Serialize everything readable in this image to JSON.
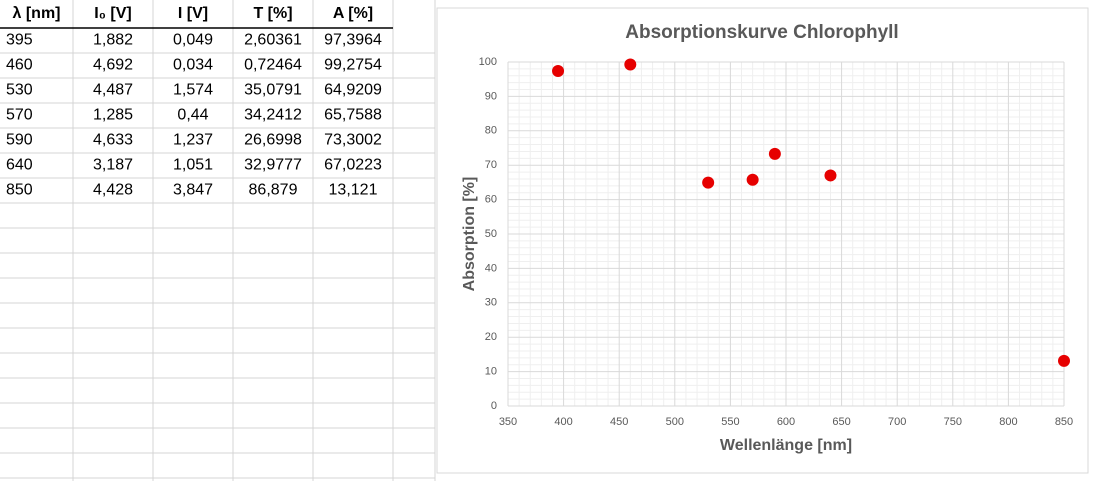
{
  "table": {
    "header": [
      "λ [nm]",
      "I₀ [V]",
      "I [V]",
      "T [%]",
      "A [%]"
    ],
    "rows": [
      [
        "395",
        "1,882",
        "0,049",
        "2,60361",
        "97,3964"
      ],
      [
        "460",
        "4,692",
        "0,034",
        "0,72464",
        "99,2754"
      ],
      [
        "530",
        "4,487",
        "1,574",
        "35,0791",
        "64,9209"
      ],
      [
        "570",
        "1,285",
        "0,44",
        "34,2412",
        "65,7588"
      ],
      [
        "590",
        "4,633",
        "1,237",
        "26,6998",
        "73,3002"
      ],
      [
        "640",
        "3,187",
        "1,051",
        "32,9777",
        "67,0223"
      ],
      [
        "850",
        "4,428",
        "3,847",
        "86,879",
        "13,121"
      ]
    ]
  },
  "chart_data": {
    "type": "scatter",
    "title": "Absorptionskurve Chlorophyll",
    "x_label": "Wellenlänge [nm]",
    "y_label": "Absorption [%]",
    "x": [
      395,
      460,
      530,
      570,
      590,
      640,
      850
    ],
    "values": [
      97.3964,
      99.2754,
      64.9209,
      65.7588,
      73.3002,
      67.0223,
      13.121
    ],
    "color": "#e60000",
    "xlim": [
      350,
      850
    ],
    "xticks": [
      350,
      400,
      450,
      500,
      550,
      600,
      650,
      700,
      750,
      800,
      850
    ],
    "ylim": [
      0,
      100
    ],
    "yticks": [
      0,
      10,
      20,
      30,
      40,
      50,
      60,
      70,
      80,
      90,
      100
    ],
    "grid": true
  }
}
